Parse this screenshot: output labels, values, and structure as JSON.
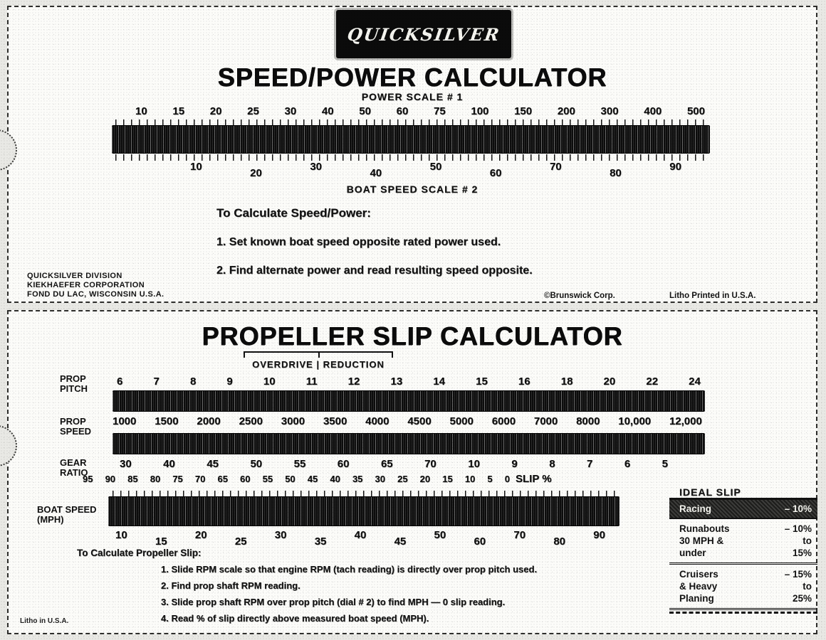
{
  "logo": {
    "text": "QUICKSILVER"
  },
  "top_card": {
    "title": "SPEED/POWER CALCULATOR",
    "scale1_label": "POWER SCALE # 1",
    "power_scale": [
      "10",
      "15",
      "20",
      "25",
      "30",
      "40",
      "50",
      "60",
      "75",
      "100",
      "150",
      "200",
      "300",
      "400",
      "500"
    ],
    "speed_scale": [
      "10",
      "20",
      "30",
      "40",
      "50",
      "60",
      "70",
      "80",
      "90"
    ],
    "scale2_label": "BOAT SPEED SCALE # 2",
    "instructions": {
      "heading": "To Calculate Speed/Power:",
      "steps": [
        "1. Set known boat speed opposite rated power used.",
        "2. Find alternate power and read resulting speed opposite."
      ]
    },
    "footer": {
      "maker_lines": [
        "QUICKSILVER DIVISION",
        "KIEKHAEFER CORPORATION",
        "FOND DU LAC, WISCONSIN U.S.A."
      ],
      "copyright": "©Brunswick Corp.",
      "printed": "Litho Printed in U.S.A."
    }
  },
  "bottom_card": {
    "title": "PROPELLER SLIP CALCULATOR",
    "gear_direction": {
      "left": "OVERDRIVE",
      "divider": "|",
      "right": "REDUCTION"
    },
    "prop_pitch": {
      "label": "PROP PITCH",
      "values": [
        "6",
        "7",
        "8",
        "9",
        "10",
        "11",
        "12",
        "13",
        "14",
        "15",
        "16",
        "18",
        "20",
        "22",
        "24"
      ]
    },
    "prop_speed": {
      "label": "PROP SPEED",
      "values": [
        "1000",
        "1500",
        "2000",
        "2500",
        "3000",
        "3500",
        "4000",
        "4500",
        "5000",
        "6000",
        "7000",
        "8000",
        "10,000",
        "12,000"
      ]
    },
    "gear_ratio": {
      "label": "GEAR RATIO",
      "values": [
        "30",
        "40",
        "45",
        "50",
        "55",
        "60",
        "65",
        "70",
        "10",
        "9",
        "8",
        "7",
        "6",
        "5"
      ]
    },
    "slip_scale": {
      "values": [
        "95",
        "90",
        "85",
        "80",
        "75",
        "70",
        "65",
        "60",
        "55",
        "50",
        "45",
        "40",
        "35",
        "30",
        "25",
        "20",
        "15",
        "10",
        "5",
        "0"
      ],
      "suffix": "SLIP %"
    },
    "boat_speed": {
      "label": "BOAT SPEED (MPH)",
      "values": [
        "10",
        "15",
        "20",
        "25",
        "30",
        "35",
        "40",
        "45",
        "50",
        "60",
        "70",
        "80",
        "90"
      ]
    },
    "instructions": {
      "heading": "To Calculate Propeller Slip:",
      "steps": [
        "1. Slide RPM scale so that engine RPM (tach reading) is directly over prop pitch used.",
        "2. Find prop shaft RPM reading.",
        "3. Slide prop shaft RPM over prop pitch (dial # 2) to find MPH — 0 slip reading.",
        "4. Read % of slip directly above measured boat speed (MPH)."
      ]
    },
    "ideal_slip": {
      "heading": "IDEAL SLIP",
      "rows": [
        {
          "l": "Racing",
          "v": "– 10%",
          "style": "dark"
        },
        {
          "l": "Runabouts",
          "v": "– 10%",
          "style": "first"
        },
        {
          "l": "30 MPH &",
          "v": "to",
          "style": ""
        },
        {
          "l": "under",
          "v": "15%",
          "style": "last"
        },
        {
          "l": "Cruisers",
          "v": "– 15%",
          "style": "first"
        },
        {
          "l": "& Heavy",
          "v": "to",
          "style": ""
        },
        {
          "l": "Planing",
          "v": "25%",
          "style": "last"
        }
      ]
    },
    "corner_note": "Litho in U.S.A."
  }
}
